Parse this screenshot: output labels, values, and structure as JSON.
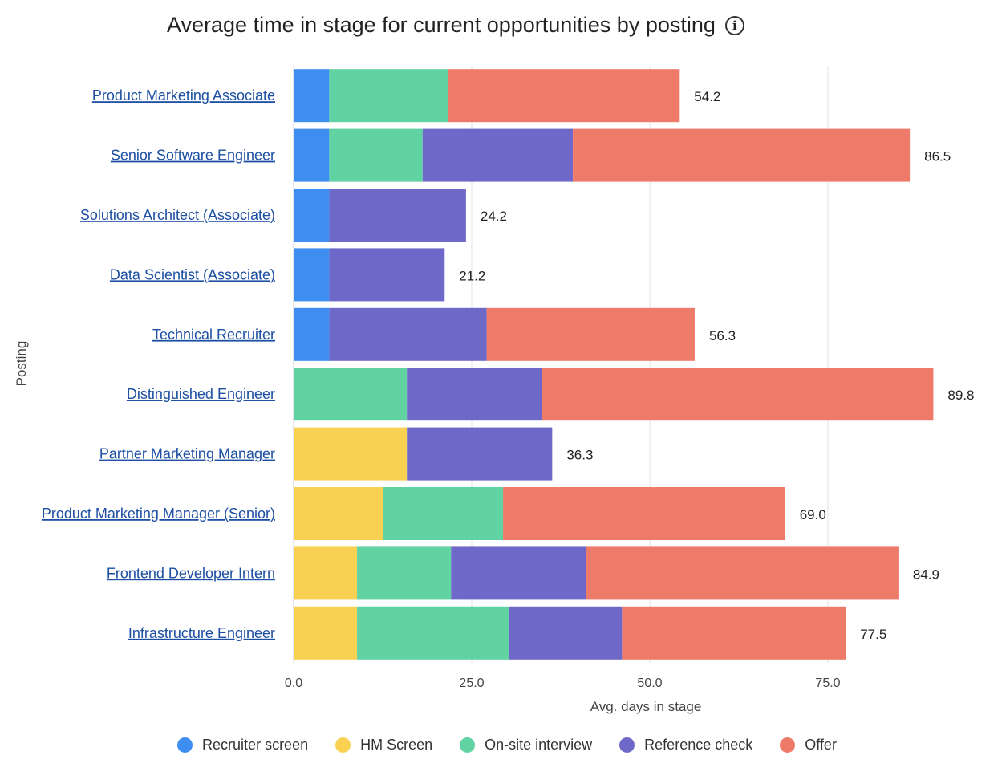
{
  "chart_data": {
    "type": "bar",
    "orientation": "horizontal",
    "stacked": true,
    "title": "Average time in stage for current opportunities by posting",
    "xlabel": "Avg. days in stage",
    "ylabel": "Posting",
    "xlim": [
      0,
      95
    ],
    "xticks": [
      "0.0",
      "25.0",
      "50.0",
      "75.0"
    ],
    "grid": true,
    "legend_position": "bottom",
    "categories": [
      "Product Marketing Associate",
      "Senior Software Engineer",
      "Solutions Architect (Associate)",
      "Data Scientist (Associate)",
      "Technical Recruiter",
      "Distinguished Engineer",
      "Partner Marketing Manager",
      "Product Marketing Manager (Senior)",
      "Frontend Developer Intern",
      "Infrastructure Engineer"
    ],
    "totals": [
      "54.2",
      "86.5",
      "24.2",
      "21.2",
      "56.3",
      "89.8",
      "36.3",
      "69.0",
      "84.9",
      "77.5"
    ],
    "series": [
      {
        "name": "Recruiter screen",
        "color": "#3d8ef0",
        "values": [
          5.0,
          5.0,
          5.0,
          5.0,
          5.0,
          0,
          0,
          0,
          0,
          0
        ]
      },
      {
        "name": "HM Screen",
        "color": "#f8d152",
        "values": [
          0,
          0,
          0,
          0,
          0,
          0,
          15.9,
          12.5,
          8.9,
          8.9
        ]
      },
      {
        "name": "On-site interview",
        "color": "#61d3a2",
        "values": [
          16.7,
          13.1,
          0,
          0,
          0,
          15.9,
          0,
          16.9,
          13.2,
          21.3
        ]
      },
      {
        "name": "Reference check",
        "color": "#6e69c8",
        "values": [
          0,
          21.1,
          19.2,
          16.2,
          22.1,
          19.0,
          20.4,
          0,
          19.0,
          15.9
        ]
      },
      {
        "name": "Offer",
        "color": "#ee7a6a",
        "values": [
          32.5,
          47.3,
          0,
          0,
          29.2,
          54.9,
          0,
          39.6,
          43.8,
          31.4
        ]
      }
    ]
  },
  "icons": {
    "title_info": "info-icon"
  }
}
